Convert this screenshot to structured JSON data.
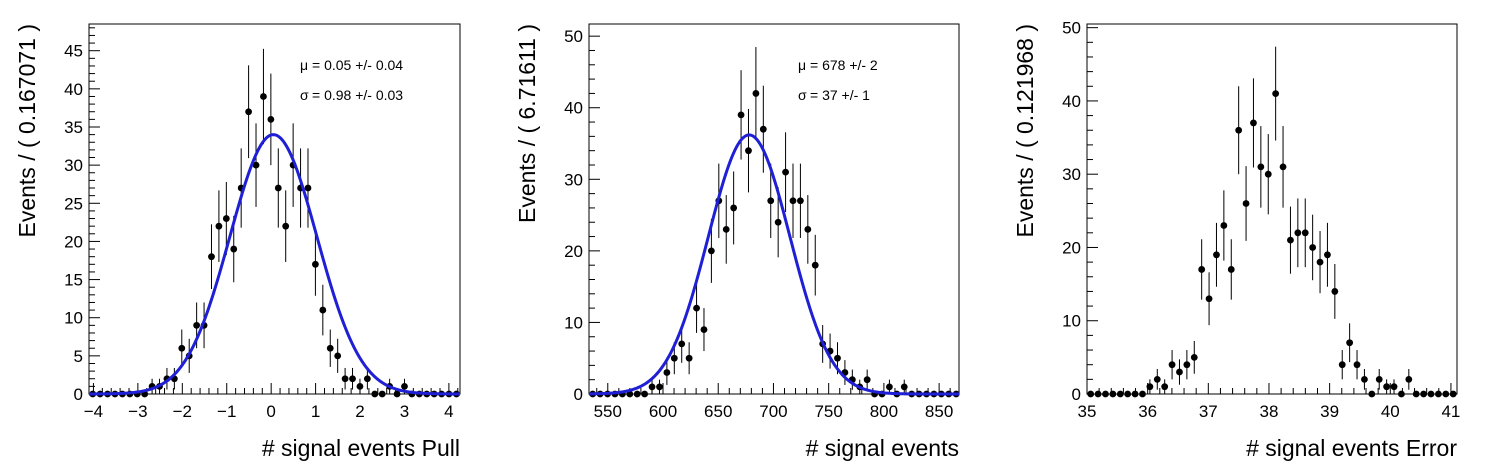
{
  "chart_data": [
    {
      "type": "scatter",
      "xlabel": "# signal events Pull",
      "ylabel": "Events / ( 0.167071 )",
      "xlim": [
        -4.1,
        4.25
      ],
      "ylim": [
        0,
        48.5
      ],
      "xticks": [
        -4,
        -3,
        -2,
        -1,
        0,
        1,
        2,
        3,
        4
      ],
      "xtick_labels": [
        "−4",
        "−3",
        "−2",
        "−1",
        "0",
        "1",
        "2",
        "3",
        "4"
      ],
      "yticks": [
        0,
        5,
        10,
        15,
        20,
        25,
        30,
        35,
        40,
        45
      ],
      "ytick_labels": [
        "0",
        "5",
        "10",
        "15",
        "20",
        "25",
        "30",
        "35",
        "40",
        "45"
      ],
      "x_minor_per_major": 5,
      "y_minor_per_major": 5,
      "bins": {
        "start": -4.1,
        "width": 0.167071
      },
      "series": [
        {
          "values": [
            0,
            0,
            0,
            0,
            0,
            0,
            0,
            0,
            1,
            1,
            2,
            2,
            6,
            5,
            9,
            9,
            18,
            22,
            23,
            19,
            27,
            37,
            30,
            39,
            36,
            27,
            22,
            30,
            27,
            27,
            17,
            11,
            6,
            5,
            2,
            2,
            1,
            2,
            0,
            0,
            1,
            0,
            1,
            0,
            0,
            0,
            0,
            0,
            0,
            0
          ]
        }
      ],
      "fit": {
        "type": "gaussian",
        "amplitude": 34.0,
        "mean": 0.05,
        "sigma": 0.98,
        "color": "#1f1fd6"
      },
      "annotations": [
        {
          "sym": "μ",
          "text": "=  0.05 +/- 0.04"
        },
        {
          "sym": "σ",
          "text": "=  0.98 +/- 0.03"
        }
      ],
      "legend": "none"
    },
    {
      "type": "scatter",
      "xlabel": "# signal events",
      "ylabel": "Events / ( 6.71611 )",
      "xlim": [
        533,
        868
      ],
      "ylim": [
        0,
        51.7
      ],
      "xticks": [
        550,
        600,
        650,
        700,
        750,
        800,
        850
      ],
      "xtick_labels": [
        "550",
        "600",
        "650",
        "700",
        "750",
        "800",
        "850"
      ],
      "yticks": [
        0,
        10,
        20,
        30,
        40,
        50
      ],
      "ytick_labels": [
        "0",
        "10",
        "20",
        "30",
        "40",
        "50"
      ],
      "x_minor_per_major": 5,
      "y_minor_per_major": 5,
      "bins": {
        "start": 533,
        "width": 6.71611
      },
      "series": [
        {
          "values": [
            0,
            0,
            0,
            0,
            0,
            0,
            0,
            0,
            1,
            1,
            3,
            5,
            7,
            5,
            12,
            9,
            20,
            27,
            23,
            26,
            39,
            34,
            42,
            37,
            27,
            24,
            31,
            27,
            27,
            23,
            18,
            7,
            6,
            5,
            3,
            2,
            1,
            2,
            0,
            0,
            1,
            0,
            1,
            0,
            0,
            0,
            0,
            0,
            0,
            0
          ]
        }
      ],
      "fit": {
        "type": "gaussian",
        "amplitude": 36.2,
        "mean": 678,
        "sigma": 37,
        "color": "#1f1fd6"
      },
      "annotations": [
        {
          "sym": "μ",
          "text": "=  678 +/- 2"
        },
        {
          "sym": "σ",
          "text": "=  37 +/- 1"
        }
      ],
      "legend": "none"
    },
    {
      "type": "scatter",
      "xlabel": "# signal events Error",
      "ylabel": "Events / ( 0.121968 )",
      "xlim": [
        35.0,
        41.1
      ],
      "ylim": [
        0,
        50.5
      ],
      "xticks": [
        35,
        36,
        37,
        38,
        39,
        40,
        41
      ],
      "xtick_labels": [
        "35",
        "36",
        "37",
        "38",
        "39",
        "40",
        "41"
      ],
      "yticks": [
        0,
        10,
        20,
        30,
        40,
        50
      ],
      "ytick_labels": [
        "0",
        "10",
        "20",
        "30",
        "40",
        "50"
      ],
      "x_minor_per_major": 5,
      "y_minor_per_major": 5,
      "bins": {
        "start": 35.0,
        "width": 0.121968
      },
      "series": [
        {
          "values": [
            0,
            0,
            0,
            0,
            0,
            0,
            0,
            0,
            1,
            2,
            1,
            4,
            3,
            4,
            5,
            17,
            13,
            19,
            23,
            17,
            36,
            26,
            37,
            31,
            30,
            41,
            31,
            21,
            22,
            22,
            20,
            18,
            19,
            14,
            4,
            7,
            4,
            2,
            0,
            2,
            1,
            1,
            0,
            2,
            0,
            0,
            0,
            0,
            0,
            0
          ]
        }
      ],
      "annotations": [],
      "legend": "none"
    }
  ]
}
